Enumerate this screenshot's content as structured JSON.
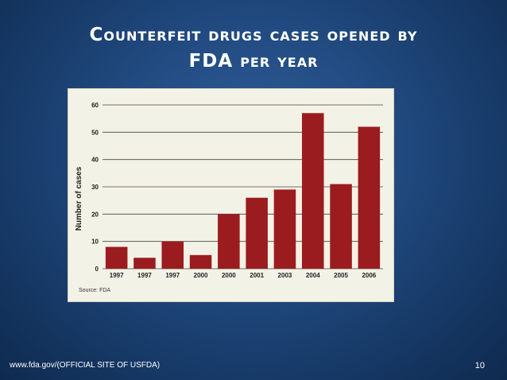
{
  "slide": {
    "title_line1": "Counterfeit drugs cases opened by",
    "title_line2": "FDA per year",
    "footer": "www.fda.gov/(OFFICIAL SITE OF USFDA)",
    "page_number": "10"
  },
  "chart_data": {
    "type": "bar",
    "categories": [
      "1997",
      "1997",
      "1997",
      "2000",
      "2000",
      "2001",
      "2003",
      "2004",
      "2005",
      "2006"
    ],
    "values": [
      8,
      4,
      10,
      5,
      20,
      26,
      29,
      57,
      31,
      52
    ],
    "ylabel": "Number of cases",
    "ylim": [
      0,
      60
    ],
    "yticks": [
      0,
      10,
      20,
      30,
      40,
      50,
      60
    ],
    "source": "Source: FDA",
    "grid": true,
    "bar_color": "#9b1c1f"
  }
}
